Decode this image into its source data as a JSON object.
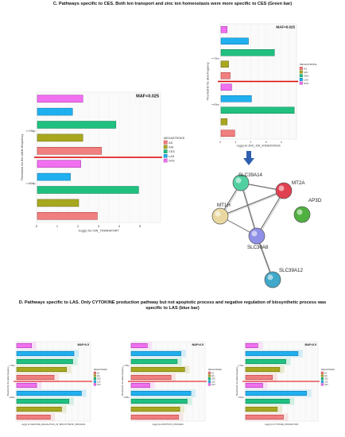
{
  "headings": {
    "c": "C. Pathways specific to CES. Both Ion transport and zinc ion homeostasis were more specific to CES (Green bar)",
    "d_line1": "D. Pathways specific to LAS. Only CYTOKINE production pathway but not apoptotic process and negative regulation of biosynthetic process was",
    "d_line2": "specific to LAS (blue bar)"
  },
  "colors": {
    "AS": "#f08080",
    "AS_stroke": "#b03030",
    "AIS": "#a8a820",
    "AIS_stroke": "#6a6a10",
    "CES": "#20c080",
    "CES_stroke": "#108050",
    "LAS": "#20b0f0",
    "LAS_stroke": "#1070a0",
    "SVS": "#f070f0",
    "SVS_stroke": "#a030a0",
    "threshold": "#dd0000"
  },
  "network": {
    "nodes": [
      {
        "id": "SLC39A14",
        "label": "SLC39A14",
        "color": "#50d0a0"
      },
      {
        "id": "MT2A",
        "label": "MT2A",
        "color": "#e04050"
      },
      {
        "id": "AP3D1",
        "label": "AP3D1",
        "color": "#50b040"
      },
      {
        "id": "MT1H",
        "label": "MT1H",
        "color": "#e8d8a0"
      },
      {
        "id": "SLC30A8",
        "label": "SLC30A8",
        "color": "#9090e8"
      },
      {
        "id": "SLC39A12",
        "label": "SLC39A12",
        "color": "#40a8c8"
      }
    ],
    "edges": [
      [
        "SLC39A14",
        "MT2A"
      ],
      [
        "SLC39A14",
        "MT1H"
      ],
      [
        "SLC39A14",
        "SLC30A8"
      ],
      [
        "MT2A",
        "MT1H"
      ],
      [
        "MT2A",
        "SLC30A8"
      ],
      [
        "MT1H",
        "SLC30A8"
      ],
      [
        "SLC30A8",
        "SLC39A12"
      ]
    ]
  },
  "chart_data": [
    {
      "type": "bar",
      "id": "ion",
      "title": "MAF<0.025",
      "xlabel": "-log(p) for ION_TRANSPORT",
      "ylabel": "Threshold for the allele frequency",
      "xlim": [
        0,
        6
      ],
      "xticks": [
        "0",
        "1",
        "2",
        "3",
        "4",
        "5"
      ],
      "ytick_labels": [
        {
          "after_bar": 3,
          "text": ">=75bp"
        },
        {
          "after_bar": 7,
          "text": "<=60bp"
        }
      ],
      "threshold_after_bar": 5,
      "legend": {
        "title": "MEGASTROKE",
        "entries": [
          "AS",
          "AIS",
          "CES",
          "LAS",
          "SVS"
        ],
        "placement": "right"
      },
      "bars": [
        {
          "group": "SVS",
          "value": 2.2
        },
        {
          "group": "LAS",
          "value": 1.7
        },
        {
          "group": "CES",
          "value": 3.8
        },
        {
          "group": "AIS",
          "value": 2.2
        },
        {
          "group": "AS",
          "value": 3.1
        },
        {
          "group": "SVS",
          "value": 2.1
        },
        {
          "group": "LAS",
          "value": 1.6
        },
        {
          "group": "CES",
          "value": 4.9
        },
        {
          "group": "AIS",
          "value": 2.0
        },
        {
          "group": "AS",
          "value": 2.9
        }
      ]
    },
    {
      "type": "bar",
      "id": "zinc",
      "title": "MAF<0.025",
      "xlabel": "-log(p) for ZINC_ION_HOMEOSTASIS",
      "ylabel": "Threshold for the allele frequency",
      "xlim": [
        0,
        5
      ],
      "xticks": [
        "0",
        "1",
        "2",
        "3",
        "4"
      ],
      "ytick_labels": [
        {
          "after_bar": 3,
          "text": ">=75bp"
        },
        {
          "after_bar": 7,
          "text": "<=60bp"
        }
      ],
      "threshold_after_bar": 5,
      "legend": {
        "title": "MEGASTROKE",
        "entries": [
          "AS",
          "AIS",
          "CES",
          "LAS",
          "SVS"
        ],
        "placement": "right"
      },
      "bars": [
        {
          "group": "SVS",
          "value": 0.4
        },
        {
          "group": "LAS",
          "value": 1.8
        },
        {
          "group": "CES",
          "value": 3.5
        },
        {
          "group": "AIS",
          "value": 0.5
        },
        {
          "group": "AS",
          "value": 0.6
        },
        {
          "group": "SVS",
          "value": 0.7
        },
        {
          "group": "LAS",
          "value": 2.0
        },
        {
          "group": "CES",
          "value": 4.8
        },
        {
          "group": "AIS",
          "value": 0.4
        },
        {
          "group": "AS",
          "value": 0.9
        }
      ]
    },
    {
      "type": "bar",
      "id": "neg",
      "title": "MAF<0.5",
      "xlabel": "-log(p) for NEGATIVE_REGULATION_OF_BIOSYNTHETIC_PROCESS",
      "ylabel": "Threshold for the allele frequency",
      "xlim": [
        0,
        6
      ],
      "xticks": [],
      "ytick_labels": [
        {
          "after_bar": 3,
          "text": ">=75bp"
        },
        {
          "after_bar": 7,
          "text": "<=60bp"
        }
      ],
      "threshold_after_bar": 5,
      "legend": {
        "title": "MEGASTROKE",
        "entries": [
          "AS",
          "AIS",
          "CES",
          "LAS",
          "SVS"
        ],
        "placement": "right"
      },
      "bars": [
        {
          "group": "SVS",
          "value": 1.2
        },
        {
          "group": "LAS",
          "value": 4.6
        },
        {
          "group": "CES",
          "value": 4.5
        },
        {
          "group": "AIS",
          "value": 4.0
        },
        {
          "group": "AS",
          "value": 3.0
        },
        {
          "group": "SVS",
          "value": 1.6
        },
        {
          "group": "LAS",
          "value": 5.2
        },
        {
          "group": "CES",
          "value": 4.2
        },
        {
          "group": "AIS",
          "value": 3.6
        },
        {
          "group": "AS",
          "value": 2.7
        }
      ]
    },
    {
      "type": "bar",
      "id": "apo",
      "title": "MAF<0.5",
      "xlabel": "-log(p) for APOPTOTIC_PROCESS",
      "ylabel": "Threshold for the allele frequency",
      "xlim": [
        0,
        6
      ],
      "xticks": [],
      "ytick_labels": [
        {
          "after_bar": 3,
          "text": ">=75bp"
        },
        {
          "after_bar": 7,
          "text": "<=60bp"
        }
      ],
      "threshold_after_bar": 5,
      "legend": {
        "title": "MEGASTROKE",
        "entries": [
          "AS",
          "AIS",
          "CES",
          "LAS",
          "SVS"
        ],
        "placement": "right"
      },
      "bars": [
        {
          "group": "SVS",
          "value": 1.3
        },
        {
          "group": "LAS",
          "value": 4.0
        },
        {
          "group": "CES",
          "value": 3.7
        },
        {
          "group": "AIS",
          "value": 4.3
        },
        {
          "group": "AS",
          "value": 3.2
        },
        {
          "group": "SVS",
          "value": 1.5
        },
        {
          "group": "LAS",
          "value": 4.8
        },
        {
          "group": "CES",
          "value": 4.5
        },
        {
          "group": "AIS",
          "value": 3.9
        },
        {
          "group": "AS",
          "value": 3.8
        }
      ]
    },
    {
      "type": "bar",
      "id": "cyt",
      "title": "MAF<0.5",
      "xlabel": "-log(p) for CYTOKINE_PRODUCTION",
      "ylabel": "Threshold for the allele frequency",
      "xlim": [
        0,
        6
      ],
      "xticks": [],
      "ytick_labels": [
        {
          "after_bar": 3,
          "text": ">=75bp"
        },
        {
          "after_bar": 7,
          "text": "<=60bp"
        }
      ],
      "threshold_after_bar": 5,
      "legend": {
        "title": "MEGASTROKE",
        "entries": [
          "AS",
          "AIS",
          "CES",
          "LAS",
          "SVS"
        ],
        "placement": "right"
      },
      "bars": [
        {
          "group": "SVS",
          "value": 1.0
        },
        {
          "group": "LAS",
          "value": 4.3
        },
        {
          "group": "CES",
          "value": 3.3
        },
        {
          "group": "AIS",
          "value": 2.8
        },
        {
          "group": "AS",
          "value": 2.2
        },
        {
          "group": "SVS",
          "value": 1.4
        },
        {
          "group": "LAS",
          "value": 5.0
        },
        {
          "group": "CES",
          "value": 3.6
        },
        {
          "group": "AIS",
          "value": 2.6
        },
        {
          "group": "AS",
          "value": 3.1
        }
      ]
    }
  ]
}
